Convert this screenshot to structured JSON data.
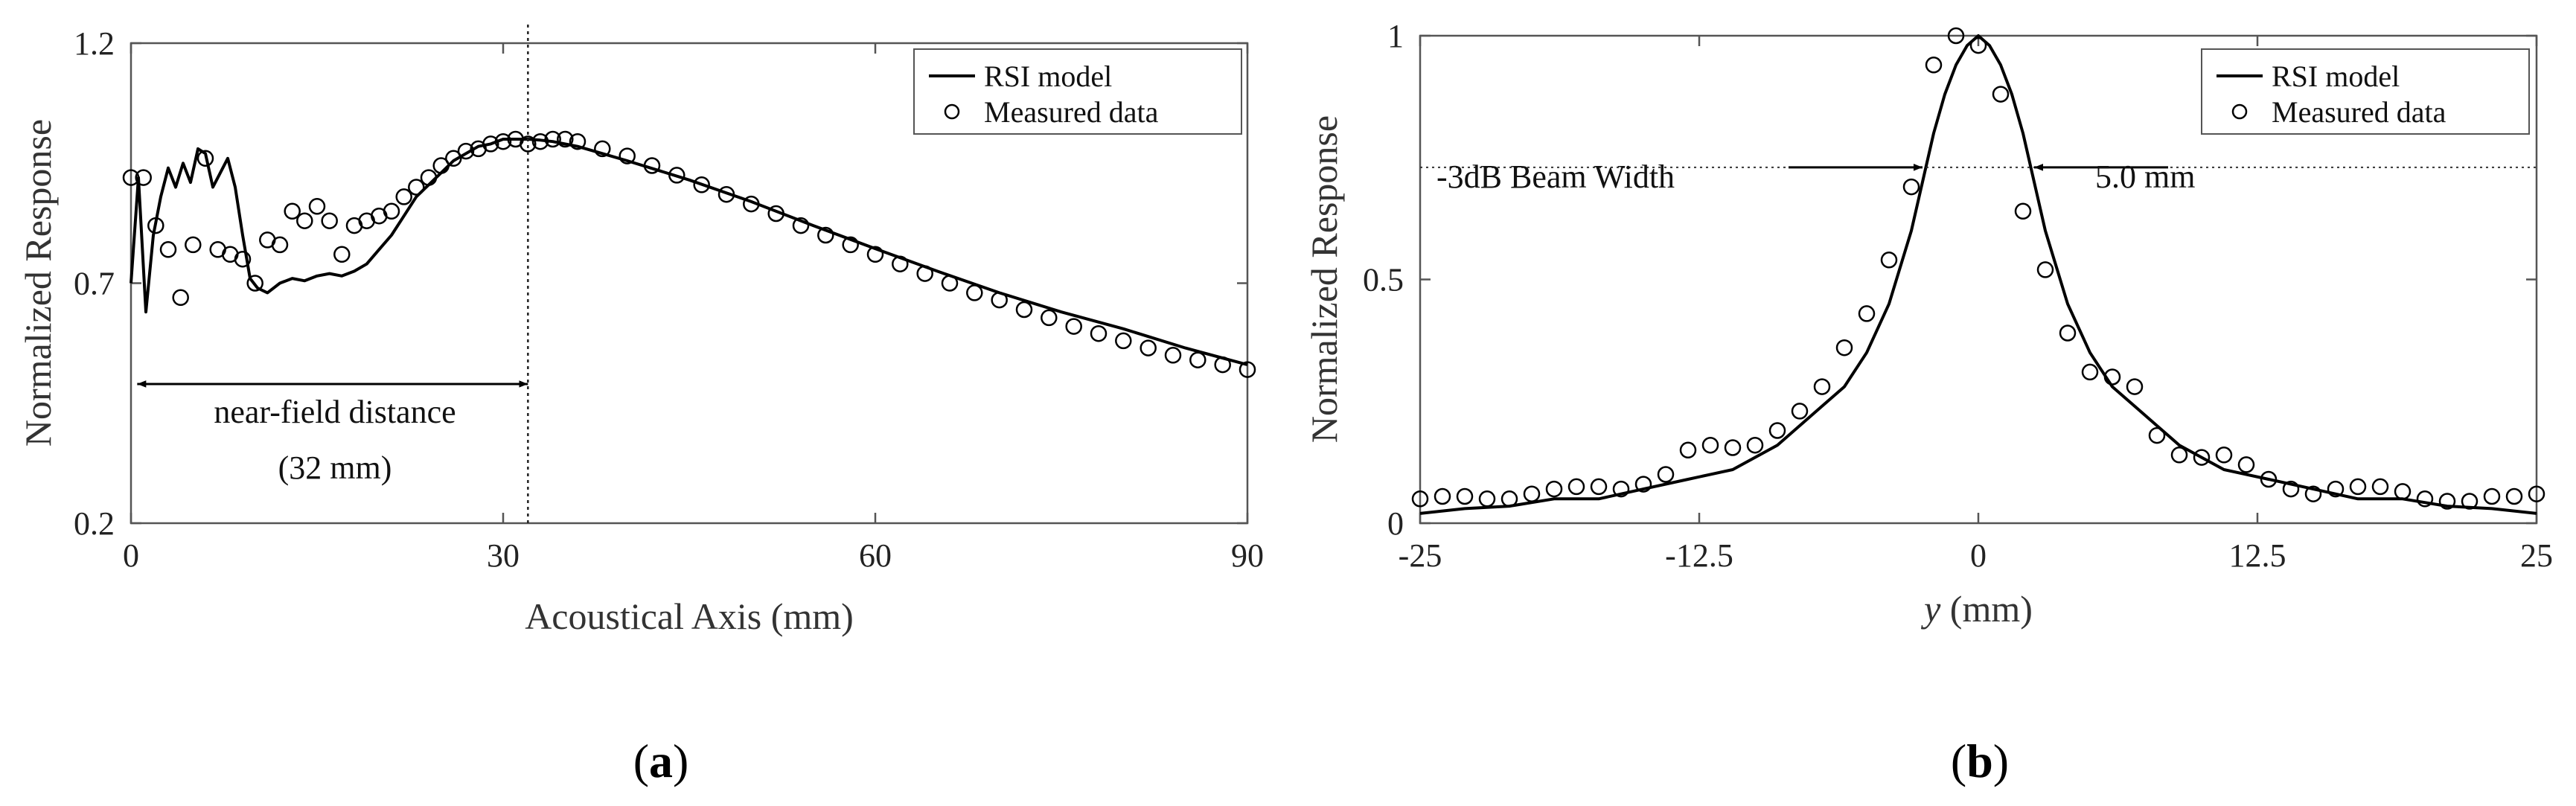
{
  "chart_data": [
    {
      "type": "line",
      "panel_label": "a",
      "xlabel": "Acoustical Axis (mm)",
      "ylabel": "Normalized Response",
      "xlim": [
        0,
        90
      ],
      "ylim": [
        0.2,
        1.2
      ],
      "xticks": [
        0,
        30,
        60,
        90
      ],
      "yticks": [
        0.2,
        0.7,
        1.2
      ],
      "xtick_labels": [
        "0",
        "30",
        "60",
        "90"
      ],
      "ytick_labels": [
        "0.2",
        "0.7",
        "1.2"
      ],
      "legend": {
        "position": "top-right",
        "line_label": "RSI model",
        "marker_label": "Measured data"
      },
      "series": [
        {
          "name": "RSI model",
          "style": "line",
          "x": [
            0,
            0.6,
            1.2,
            1.8,
            2.4,
            3,
            3.6,
            4.2,
            4.8,
            5.4,
            6,
            6.6,
            7.2,
            7.8,
            8.4,
            9,
            9.6,
            10.2,
            11,
            12,
            13,
            14,
            15,
            16,
            17,
            18,
            19,
            20,
            21,
            22,
            23,
            24,
            25,
            26,
            27,
            28,
            29,
            30,
            31,
            32,
            33,
            34,
            36,
            38,
            40,
            45,
            50,
            55,
            60,
            65,
            70,
            75,
            80,
            85,
            90
          ],
          "y": [
            0.7,
            0.92,
            0.64,
            0.8,
            0.88,
            0.94,
            0.9,
            0.95,
            0.91,
            0.98,
            0.97,
            0.9,
            0.93,
            0.96,
            0.9,
            0.8,
            0.71,
            0.69,
            0.68,
            0.7,
            0.71,
            0.705,
            0.715,
            0.72,
            0.715,
            0.725,
            0.74,
            0.77,
            0.8,
            0.84,
            0.88,
            0.905,
            0.93,
            0.955,
            0.97,
            0.985,
            0.99,
            1.0,
            1.0,
            1.0,
            0.998,
            0.995,
            0.985,
            0.97,
            0.955,
            0.915,
            0.87,
            0.82,
            0.772,
            0.725,
            0.68,
            0.64,
            0.605,
            0.565,
            0.53
          ]
        },
        {
          "name": "Measured data",
          "style": "marker",
          "x": [
            0,
            1,
            2,
            3,
            4,
            5,
            6,
            7,
            8,
            9,
            10,
            11,
            12,
            13,
            14,
            15,
            16,
            17,
            18,
            19,
            20,
            21,
            22,
            23,
            24,
            25,
            26,
            27,
            28,
            29,
            30,
            31,
            32,
            33,
            34,
            35,
            36,
            38,
            40,
            42,
            44,
            46,
            48,
            50,
            52,
            54,
            56,
            58,
            60,
            62,
            64,
            66,
            68,
            70,
            72,
            74,
            76,
            78,
            80,
            82,
            84,
            86,
            88,
            90
          ],
          "y": [
            0.92,
            0.92,
            0.82,
            0.77,
            0.67,
            0.78,
            0.96,
            0.77,
            0.76,
            0.75,
            0.7,
            0.79,
            0.78,
            0.85,
            0.83,
            0.86,
            0.83,
            0.76,
            0.82,
            0.83,
            0.84,
            0.85,
            0.88,
            0.9,
            0.92,
            0.945,
            0.96,
            0.975,
            0.98,
            0.99,
            0.995,
            1.0,
            0.99,
            0.995,
            1.0,
            1.0,
            0.995,
            0.98,
            0.965,
            0.945,
            0.925,
            0.905,
            0.885,
            0.865,
            0.845,
            0.82,
            0.8,
            0.78,
            0.76,
            0.74,
            0.72,
            0.7,
            0.68,
            0.665,
            0.645,
            0.628,
            0.61,
            0.595,
            0.58,
            0.565,
            0.55,
            0.54,
            0.53,
            0.52
          ]
        }
      ],
      "annotations": {
        "near_field_label": "near-field distance",
        "near_field_value": "(32 mm)",
        "near_field_x": 32,
        "arrow_from_x": 0.5,
        "arrow_to_x": 32,
        "arrow_y": 0.49
      }
    },
    {
      "type": "line",
      "panel_label": "b",
      "xlabel_italic": "y",
      "xlabel_rest": " (mm)",
      "ylabel": "Normalized Response",
      "xlim": [
        -25,
        25
      ],
      "ylim": [
        0,
        1
      ],
      "xticks": [
        -25,
        -12.5,
        0,
        12.5,
        25
      ],
      "yticks": [
        0,
        0.5,
        1
      ],
      "xtick_labels": [
        "-25",
        "-12.5",
        "0",
        "12.5",
        "25"
      ],
      "ytick_labels": [
        "0",
        "0.5",
        "1"
      ],
      "legend": {
        "position": "top-right",
        "line_label": "RSI model",
        "marker_label": "Measured data"
      },
      "series": [
        {
          "name": "RSI model",
          "style": "line",
          "x": [
            -25,
            -23,
            -21,
            -19,
            -17,
            -15,
            -13,
            -11,
            -9,
            -8,
            -7,
            -6,
            -5,
            -4,
            -3,
            -2.5,
            -2,
            -1.5,
            -1,
            -0.5,
            0,
            0.5,
            1,
            1.5,
            2,
            2.5,
            3,
            4,
            5,
            6,
            7,
            8,
            9,
            11,
            13,
            15,
            17,
            19,
            21,
            23,
            25
          ],
          "y": [
            0.02,
            0.03,
            0.035,
            0.05,
            0.05,
            0.07,
            0.09,
            0.11,
            0.16,
            0.2,
            0.24,
            0.28,
            0.35,
            0.45,
            0.6,
            0.7,
            0.8,
            0.88,
            0.94,
            0.98,
            1.0,
            0.98,
            0.94,
            0.88,
            0.8,
            0.7,
            0.6,
            0.45,
            0.35,
            0.28,
            0.24,
            0.2,
            0.16,
            0.11,
            0.09,
            0.07,
            0.05,
            0.05,
            0.035,
            0.03,
            0.02
          ]
        },
        {
          "name": "Measured data",
          "style": "marker",
          "x": [
            -25,
            -24,
            -23,
            -22,
            -21,
            -20,
            -19,
            -18,
            -17,
            -16,
            -15,
            -14,
            -13,
            -12,
            -11,
            -10,
            -9,
            -8,
            -7,
            -6,
            -5,
            -4,
            -3,
            -2,
            -1,
            0,
            1,
            2,
            3,
            4,
            5,
            6,
            7,
            8,
            9,
            10,
            11,
            12,
            13,
            14,
            15,
            16,
            17,
            18,
            19,
            20,
            21,
            22,
            23,
            24,
            25
          ],
          "y": [
            0.05,
            0.055,
            0.055,
            0.05,
            0.05,
            0.06,
            0.07,
            0.075,
            0.075,
            0.07,
            0.08,
            0.1,
            0.15,
            0.16,
            0.155,
            0.16,
            0.19,
            0.23,
            0.28,
            0.36,
            0.43,
            0.54,
            0.69,
            0.94,
            1.0,
            0.98,
            0.88,
            0.64,
            0.52,
            0.39,
            0.31,
            0.3,
            0.28,
            0.18,
            0.14,
            0.135,
            0.14,
            0.12,
            0.09,
            0.07,
            0.06,
            0.07,
            0.075,
            0.075,
            0.065,
            0.05,
            0.045,
            0.045,
            0.055,
            0.055,
            0.06
          ]
        }
      ],
      "annotations": {
        "beam_width_label": "-3dB Beam Width",
        "beam_width_value": "5.0 mm",
        "level_y": 0.73,
        "half_width_mm": 2.5,
        "arrow_length_mm": 6
      }
    }
  ],
  "captions": {
    "a": "a",
    "b": "b"
  }
}
